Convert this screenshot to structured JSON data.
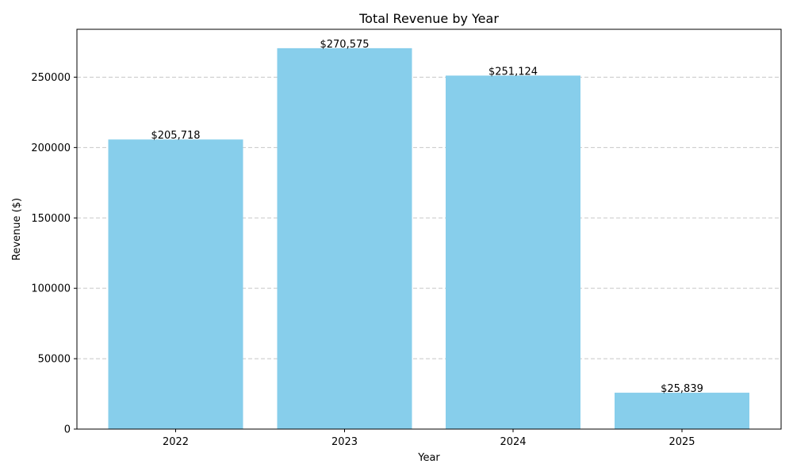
{
  "chart_data": {
    "type": "bar",
    "title": "Total Revenue by Year",
    "xlabel": "Year",
    "ylabel": "Revenue ($)",
    "categories": [
      "2022",
      "2023",
      "2024",
      "2025"
    ],
    "values": [
      205718,
      270575,
      251124,
      25839
    ],
    "data_labels": [
      "$205,718",
      "$270,575",
      "$251,124",
      "$25,839"
    ],
    "ylim": [
      0,
      284000
    ],
    "yticks": [
      0,
      50000,
      100000,
      150000,
      200000,
      250000
    ],
    "ytick_labels": [
      "0",
      "50000",
      "100000",
      "150000",
      "200000",
      "250000"
    ],
    "grid": "y-dashed",
    "bar_color": "#87ceeb",
    "grid_color": "#c8c8c8",
    "axis_color": "#000000"
  }
}
